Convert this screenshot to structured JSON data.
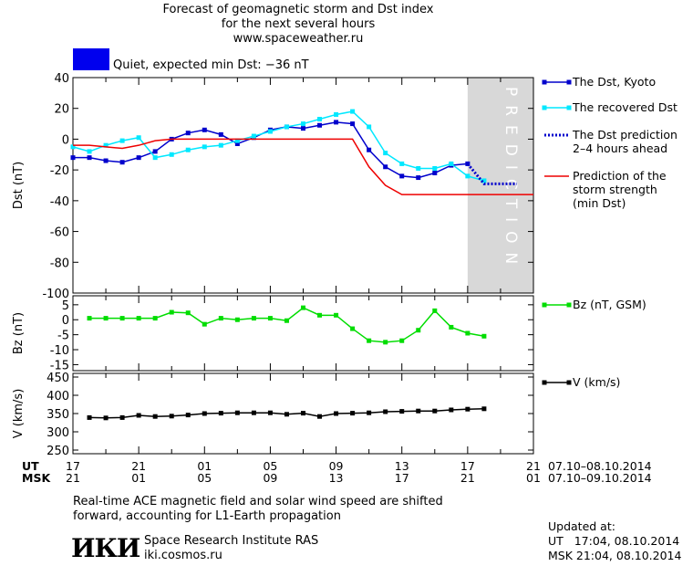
{
  "header": {
    "title_line1": "Forecast of geomagnetic storm and Dst index",
    "title_line2": "for the next several hours",
    "website": "www.spaceweather.ru",
    "status_text": "Quiet, expected min Dst: −36 nT",
    "status_color": "#0000ee"
  },
  "legend": {
    "dst_kyoto": "The Dst, Kyoto",
    "dst_recovered": "The recovered Dst",
    "dst_prediction_l1": "The Dst prediction",
    "dst_prediction_l2": "2–4 hours ahead",
    "strength_l1": "Prediction of the",
    "strength_l2": "storm strength",
    "strength_l3": "(min Dst)",
    "bz": "Bz (nT, GSM)",
    "v": "V (km/s)"
  },
  "time_axis": {
    "ut_label": "UT",
    "msk_label": "MSK",
    "ut_ticks": [
      "17",
      "21",
      "01",
      "05",
      "09",
      "13",
      "17",
      "21"
    ],
    "msk_ticks": [
      "21",
      "01",
      "05",
      "09",
      "13",
      "17",
      "21",
      "01"
    ],
    "ut_range": "07.10–08.10.2014",
    "msk_range": "07.10–09.10.2014"
  },
  "footer": {
    "note_line1": "Real-time ACE magnetic field and solar wind speed are shifted",
    "note_line2": "forward, accounting for L1-Earth propagation",
    "logo_text": "ИКИ",
    "institute": "Space Research Institute RAS",
    "site": "iki.cosmos.ru",
    "updated_label": "Updated at:",
    "updated_ut": "UT   17:04, 08.10.2014",
    "updated_msk": "MSK 21:04, 08.10.2014"
  },
  "chart_data": [
    {
      "type": "line",
      "ylabel": "Dst (nT)",
      "ylim": [
        -100,
        40
      ],
      "yticks": [
        40,
        20,
        0,
        -20,
        -40,
        -60,
        -80,
        -100
      ],
      "xlim": [
        17,
        45
      ],
      "prediction_band": {
        "x": [
          41,
          45
        ],
        "label": "PREDICTION",
        "color": "#d8d8d8"
      },
      "series": [
        {
          "name": "The Dst, Kyoto",
          "color": "#0000cc",
          "x": [
            17,
            18,
            19,
            20,
            21,
            22,
            23,
            24,
            25,
            26,
            27,
            28,
            29,
            30,
            31,
            32,
            33,
            34,
            35,
            36,
            37,
            38,
            39,
            40,
            41
          ],
          "y": [
            -12,
            -12,
            -14,
            -15,
            -12,
            -8,
            0,
            4,
            6,
            3,
            -3,
            1,
            6,
            8,
            7,
            9,
            11,
            10,
            -7,
            -18,
            -24,
            -25,
            -22,
            -17,
            -16
          ]
        },
        {
          "name": "The recovered Dst",
          "color": "#00e8ff",
          "x": [
            17,
            18,
            19,
            20,
            21,
            22,
            23,
            24,
            25,
            26,
            27,
            28,
            29,
            30,
            31,
            32,
            33,
            34,
            35,
            36,
            37,
            38,
            39,
            40,
            41,
            42
          ],
          "y": [
            -5,
            -8,
            -4,
            -1,
            1,
            -12,
            -10,
            -7,
            -5,
            -4,
            -1,
            2,
            5,
            8,
            10,
            13,
            16,
            18,
            8,
            -9,
            -16,
            -19,
            -19,
            -16,
            -24,
            -27
          ]
        },
        {
          "name": "The Dst prediction 2–4 hours ahead",
          "color": "#0000cc",
          "dash": true,
          "x": [
            41,
            42,
            43,
            44
          ],
          "y": [
            -16,
            -29,
            -29,
            -29
          ]
        },
        {
          "name": "Prediction of the storm strength (min Dst)",
          "color": "#ee0000",
          "x": [
            17,
            18,
            19,
            20,
            21,
            22,
            23,
            24,
            25,
            26,
            27,
            28,
            29,
            30,
            31,
            32,
            33,
            34,
            35,
            36,
            37,
            38,
            39,
            40,
            41,
            42,
            43,
            44,
            45
          ],
          "y": [
            -4,
            -4,
            -5,
            -6,
            -4,
            -1,
            0,
            0,
            0,
            0,
            0,
            0,
            0,
            0,
            0,
            0,
            0,
            0,
            -18,
            -30,
            -36,
            -36,
            -36,
            -36,
            -36,
            -36,
            -36,
            -36,
            -36
          ]
        }
      ]
    },
    {
      "type": "line",
      "ylabel": "Bz (nT)",
      "ylim": [
        -17,
        8
      ],
      "yticks": [
        5,
        0,
        -5,
        -10,
        -15
      ],
      "xlim": [
        17,
        45
      ],
      "series": [
        {
          "name": "Bz (nT, GSM)",
          "color": "#00dd00",
          "x": [
            18,
            19,
            20,
            21,
            22,
            23,
            24,
            25,
            26,
            27,
            28,
            29,
            30,
            31,
            32,
            33,
            34,
            35,
            36,
            37,
            38,
            39,
            40,
            41,
            42
          ],
          "y": [
            0.5,
            0.5,
            0.5,
            0.5,
            0.5,
            2.5,
            2.3,
            -1.5,
            0.5,
            0,
            0.5,
            0.5,
            -0.3,
            4,
            1.5,
            1.5,
            -3,
            -7,
            -7.5,
            -7,
            -3.5,
            3,
            -2.5,
            -4.5,
            -5.5
          ]
        }
      ]
    },
    {
      "type": "line",
      "ylabel": "V (km/s)",
      "ylim": [
        240,
        460
      ],
      "yticks": [
        450,
        400,
        350,
        300,
        250
      ],
      "xlim": [
        17,
        45
      ],
      "series": [
        {
          "name": "V (km/s)",
          "color": "#000000",
          "x": [
            18,
            19,
            20,
            21,
            22,
            23,
            24,
            25,
            26,
            27,
            28,
            29,
            30,
            31,
            32,
            33,
            34,
            35,
            36,
            37,
            38,
            39,
            40,
            41,
            42
          ],
          "y": [
            339,
            338,
            339,
            345,
            342,
            343,
            346,
            350,
            351,
            352,
            352,
            352,
            348,
            351,
            342,
            350,
            351,
            352,
            355,
            356,
            357,
            357,
            360,
            362,
            363
          ]
        }
      ]
    }
  ]
}
